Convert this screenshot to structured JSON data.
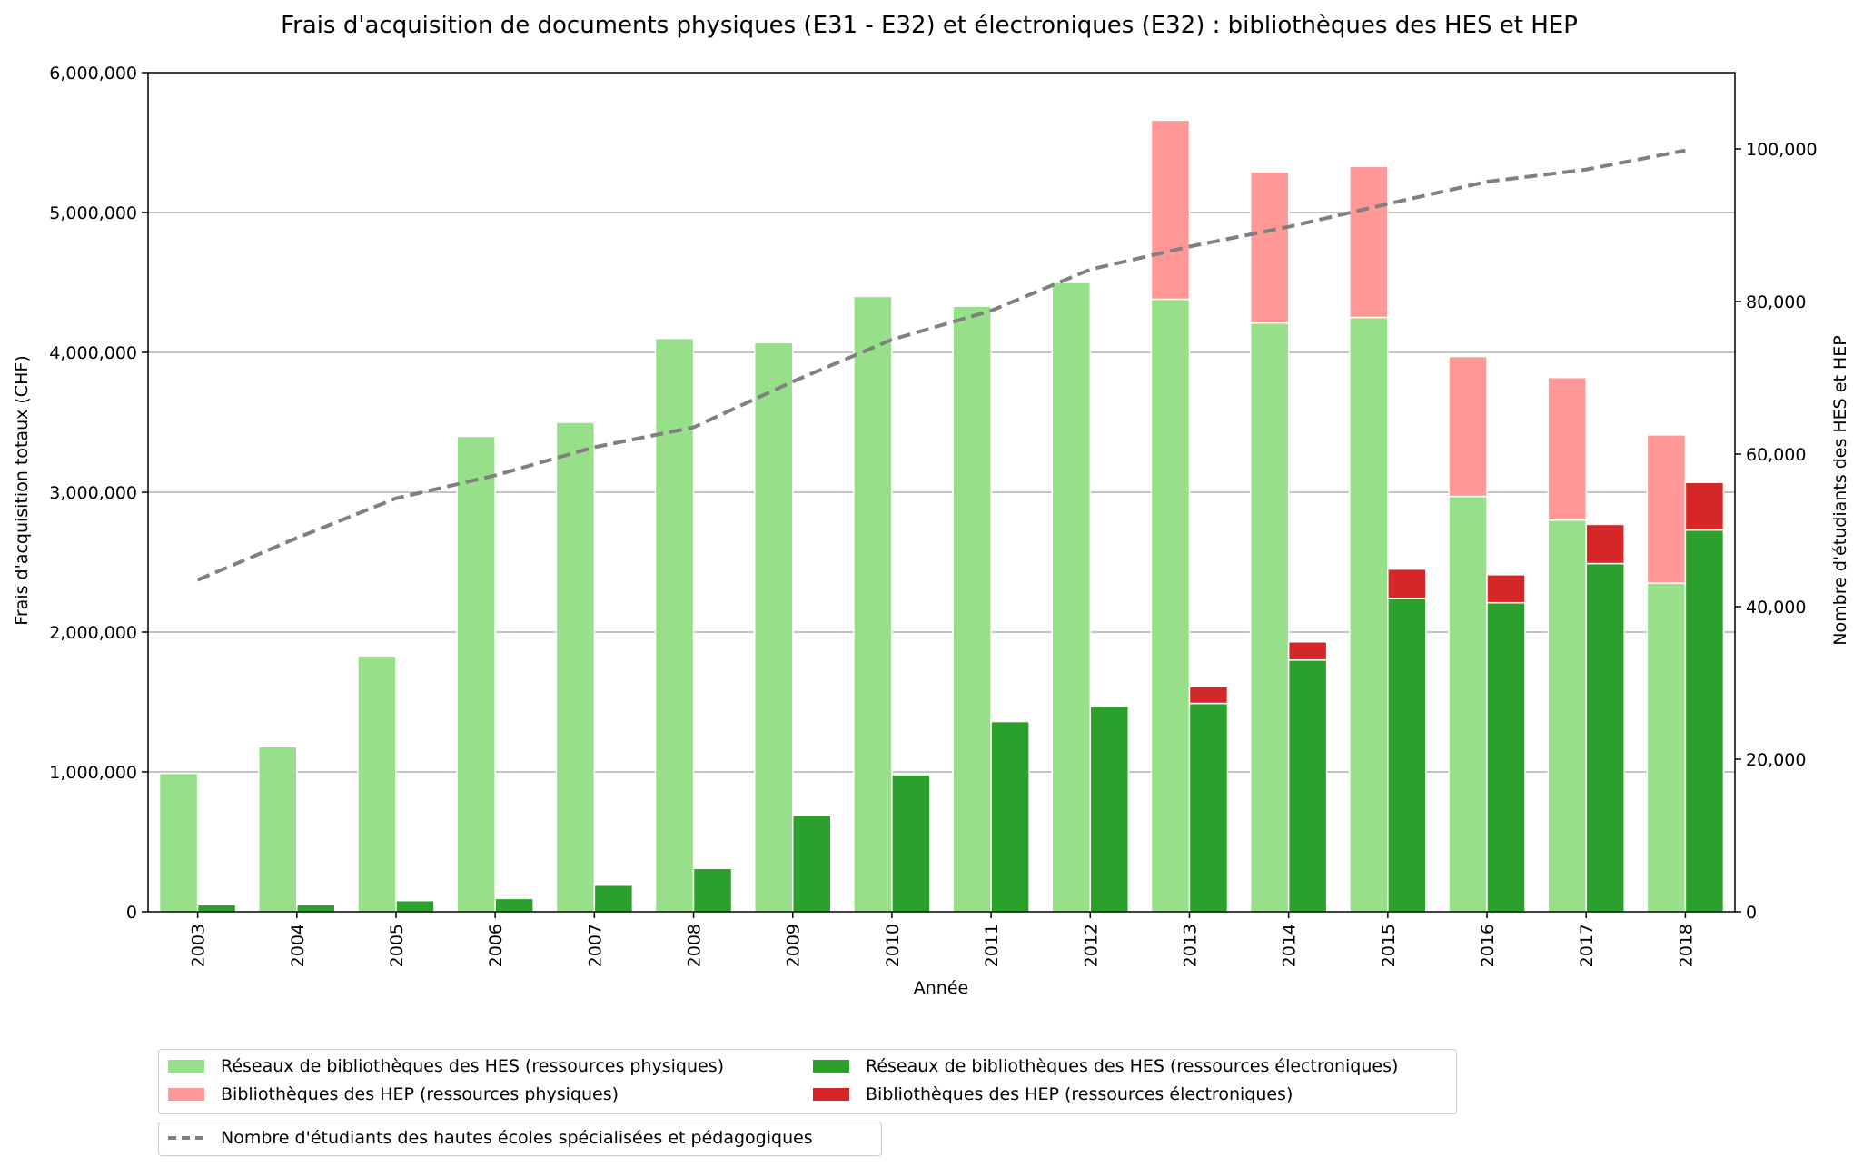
{
  "chart_data": {
    "type": "bar",
    "title": "Frais d'acquisition de documents physiques (E31 - E32) et électroniques (E32) : bibliothèques des HES et HEP",
    "xlabel": "Année",
    "ylabel_left": "Frais d'acquisition totaux (CHF)",
    "ylabel_right": "Nombre d'étudiants des HES et HEP",
    "ylim_left": [
      0,
      6000000
    ],
    "ylim_right": [
      0,
      110000
    ],
    "yticks_left": [
      "0",
      "1,000,000",
      "2,000,000",
      "3,000,000",
      "4,000,000",
      "5,000,000",
      "6,000,000"
    ],
    "yticks_right": [
      "0",
      "20,000",
      "40,000",
      "60,000",
      "80,000",
      "100,000"
    ],
    "grid": "horizontal",
    "categories": [
      "2003",
      "2004",
      "2005",
      "2006",
      "2007",
      "2008",
      "2009",
      "2010",
      "2011",
      "2012",
      "2013",
      "2014",
      "2015",
      "2016",
      "2017",
      "2018"
    ],
    "series": [
      {
        "name": "Réseaux de bibliothèques des HES (ressources physiques)",
        "color": "#98df8a",
        "stack": "physiques",
        "values": [
          990000,
          1180000,
          1830000,
          3400000,
          3500000,
          4100000,
          4070000,
          4400000,
          4330000,
          4500000,
          4380000,
          4210000,
          4250000,
          2970000,
          2800000,
          2350000
        ]
      },
      {
        "name": "Bibliothèques des HEP (ressources physiques)",
        "color": "#ff9896",
        "stack": "physiques",
        "values": [
          0,
          0,
          0,
          0,
          0,
          0,
          0,
          0,
          0,
          0,
          1280000,
          1080000,
          1080000,
          1000000,
          1020000,
          1060000
        ]
      },
      {
        "name": "Réseaux de bibliothèques des HES (ressources électroniques)",
        "color": "#2ca02c",
        "stack": "electroniques",
        "values": [
          50000,
          50000,
          80000,
          95000,
          190000,
          310000,
          690000,
          980000,
          1360000,
          1470000,
          1490000,
          1800000,
          2240000,
          2210000,
          2490000,
          2730000
        ]
      },
      {
        "name": "Bibliothèques des HEP (ressources électroniques)",
        "color": "#d62728",
        "stack": "electroniques",
        "values": [
          0,
          0,
          0,
          0,
          0,
          0,
          0,
          0,
          0,
          0,
          120000,
          130000,
          210000,
          200000,
          280000,
          340000
        ]
      }
    ],
    "line_series": {
      "name": "Nombre d'étudiants des hautes écoles spécialisées et pédagogiques",
      "color": "#808080",
      "axis": "right",
      "style": "dashed",
      "values": [
        43500,
        49000,
        54200,
        57200,
        60900,
        63500,
        69500,
        75000,
        78800,
        84200,
        87200,
        89800,
        92800,
        95700,
        97300,
        99800
      ]
    },
    "legend": "bottom-outside"
  }
}
